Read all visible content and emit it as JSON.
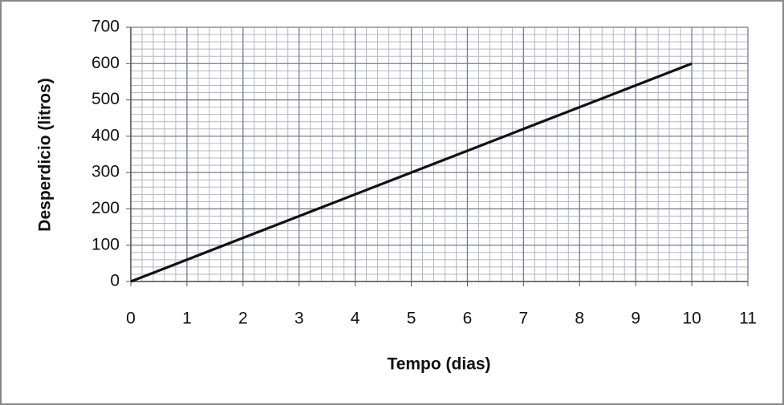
{
  "chart_data": {
    "type": "line",
    "x_label": "Tempo (dias)",
    "y_label": "Desperdicio (litros)",
    "x": [
      0,
      1,
      2,
      3,
      4,
      5,
      6,
      7,
      8,
      9,
      10
    ],
    "series": [
      {
        "name": "Desperdicio",
        "color": "#111111",
        "values": [
          0,
          60,
          120,
          180,
          240,
          300,
          360,
          420,
          480,
          540,
          600
        ]
      }
    ],
    "xlim": [
      0,
      11
    ],
    "xticks": [
      0,
      1,
      2,
      3,
      4,
      5,
      6,
      7,
      8,
      9,
      10,
      11
    ],
    "ylim": [
      0,
      700
    ],
    "yticks": [
      0,
      100,
      200,
      300,
      400,
      500,
      600,
      700
    ],
    "grid": true,
    "minor_grid": true
  }
}
